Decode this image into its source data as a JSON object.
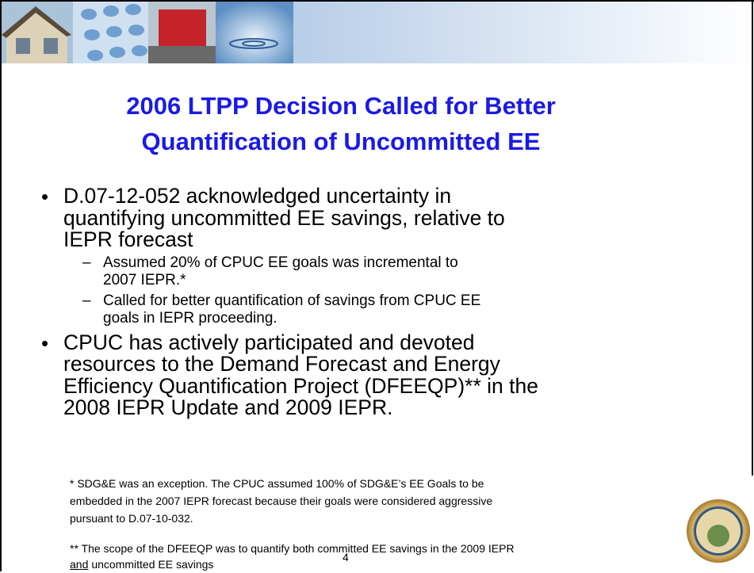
{
  "title": {
    "lines": [
      "2006 LTPP Decision Called for Better",
      "Quantification of Uncommitted EE"
    ]
  },
  "bullets": [
    {
      "lines": [
        "D.07-12-052 acknowledged uncertainty in",
        "quantifying uncommitted EE savings, relative to",
        "IEPR forecast"
      ],
      "subbullets": [
        {
          "lines": [
            "Assumed 20% of CPUC EE goals was incremental to",
            "2007 IEPR.*"
          ]
        },
        {
          "lines": [
            "Called for better quantification of savings from CPUC EE",
            "goals in IEPR proceeding."
          ]
        }
      ]
    },
    {
      "lines": [
        "CPUC has actively participated and devoted",
        "resources to the Demand Forecast and Energy",
        "Efficiency Quantification Project (DFEEQP)** in the",
        "2008 IEPR Update and 2009 IEPR."
      ],
      "subbullets": []
    }
  ],
  "footnotes": {
    "first": {
      "lines": [
        "* SDG&E was an exception.  The CPUC assumed 100% of SDG&E’s EE Goals to be",
        "embedded in the 2007 IEPR forecast because their goals were considered aggressive",
        "pursuant to D.07-10-032."
      ]
    },
    "second": {
      "line1": "** The scope of the DFEEQP was to quantify both committed EE savings in the 2009 IEPR",
      "underlined": "and",
      "rest": "uncommitted EE savings"
    }
  },
  "page_number": "4"
}
